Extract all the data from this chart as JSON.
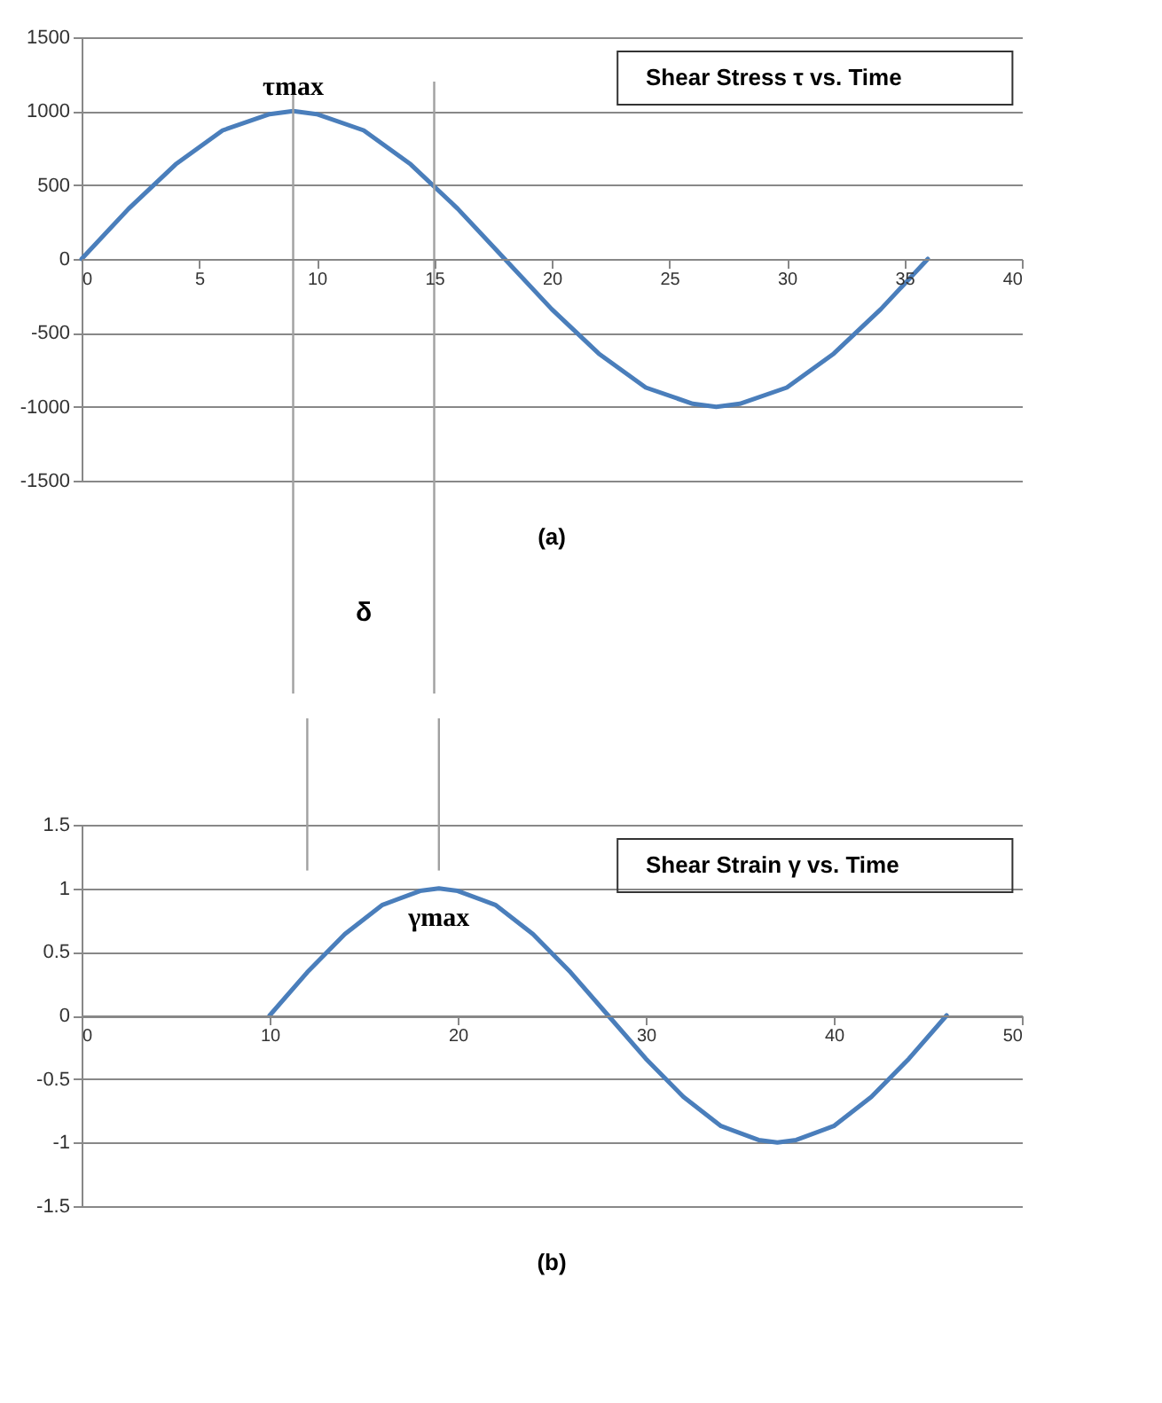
{
  "chart_data": [
    {
      "type": "line",
      "title": "Shear Stress τ vs. Time",
      "xlim": [
        0,
        40
      ],
      "xticks": [
        0,
        5,
        10,
        15,
        20,
        25,
        30,
        35,
        40
      ],
      "ylim": [
        -1500,
        1500
      ],
      "yticks": [
        -1500,
        -1000,
        -500,
        0,
        500,
        1000,
        1500
      ],
      "grid": "y",
      "series": [
        {
          "color": "#4a7ebb",
          "x": [
            0,
            2,
            4,
            6,
            8,
            9,
            10,
            12,
            14,
            16,
            18,
            20,
            22,
            24,
            26,
            27,
            28,
            30,
            32,
            34,
            36
          ],
          "values": [
            0,
            340,
            640,
            870,
            980,
            1000,
            980,
            870,
            640,
            340,
            0,
            -340,
            -640,
            -870,
            -980,
            -1000,
            -980,
            -870,
            -640,
            -340,
            0
          ]
        }
      ],
      "ref_lines": [
        {
          "axis": "x",
          "value": 9,
          "color": "#a0a0a0"
        },
        {
          "axis": "x",
          "value": 15,
          "color": "#a0a0a0"
        }
      ],
      "annotations": [
        {
          "text": "τmax",
          "x": 9,
          "y": 1000
        },
        "(a)",
        "δ"
      ]
    },
    {
      "type": "line",
      "title": "Shear Strain γ vs. Time",
      "xlim": [
        0,
        50
      ],
      "xticks": [
        0,
        10,
        20,
        30,
        40,
        50
      ],
      "ylim": [
        -1.5,
        1.5
      ],
      "yticks": [
        -1.5,
        -1,
        -0.5,
        0,
        0.5,
        1,
        1.5
      ],
      "grid": "y",
      "series": [
        {
          "color": "#4a7ebb",
          "x": [
            10,
            12,
            14,
            16,
            18,
            19,
            20,
            22,
            24,
            26,
            28,
            30,
            32,
            34,
            36,
            37,
            38,
            40,
            42,
            44,
            46
          ],
          "values": [
            0,
            0.34,
            0.64,
            0.87,
            0.98,
            1,
            0.98,
            0.87,
            0.64,
            0.34,
            0,
            -0.34,
            -0.64,
            -0.87,
            -0.98,
            -1,
            -0.98,
            -0.87,
            -0.64,
            -0.34,
            0
          ]
        }
      ],
      "ref_lines": [
        {
          "axis": "x",
          "value": 12,
          "color": "#a0a0a0"
        },
        {
          "axis": "x",
          "value": 19,
          "color": "#a0a0a0"
        }
      ],
      "annotations": [
        {
          "text": "γmax",
          "x": 19,
          "y": 1
        },
        "(b)"
      ]
    }
  ]
}
